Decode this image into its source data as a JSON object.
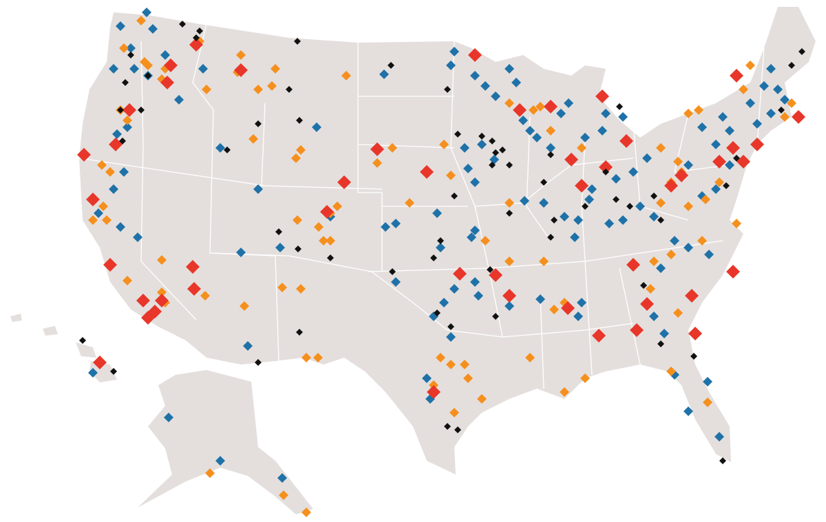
{
  "map": {
    "land_color": "#e4dfdd",
    "border_color": "#ffffff",
    "marker_colors": [
      "#1f72a8",
      "#f5901e",
      "#e8362a",
      "#111111"
    ]
  }
}
